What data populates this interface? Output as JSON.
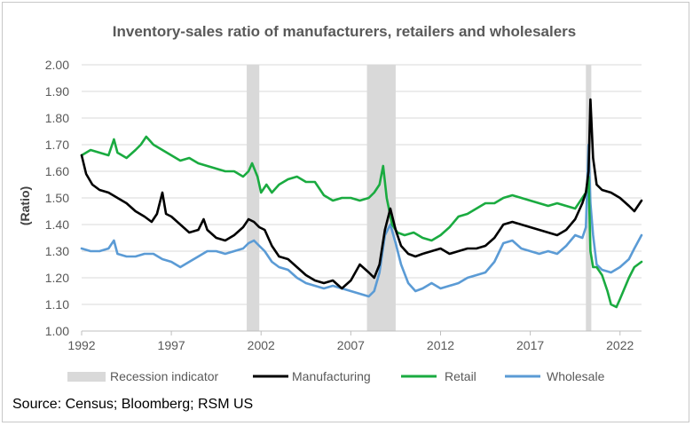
{
  "chart_data": {
    "type": "line",
    "title": "Inventory-sales ratio of manufacturers, retailers and wholesalers",
    "xlabel": "",
    "ylabel": "(Ratio)",
    "xlim": [
      1992,
      2023.2
    ],
    "ylim": [
      1.0,
      2.0
    ],
    "y_ticks": [
      1.0,
      1.1,
      1.2,
      1.3,
      1.4,
      1.5,
      1.6,
      1.7,
      1.8,
      1.9,
      2.0
    ],
    "y_tick_labels": [
      "1.00",
      "1.10",
      "1.20",
      "1.30",
      "1.40",
      "1.50",
      "1.60",
      "1.70",
      "1.80",
      "1.90",
      "2.00"
    ],
    "x_ticks": [
      1992,
      1997,
      2002,
      2007,
      2012,
      2017,
      2022
    ],
    "x_tick_labels": [
      "1992",
      "1997",
      "2002",
      "2007",
      "2012",
      "2017",
      "2022"
    ],
    "grid": "horizontal",
    "legend_position": "bottom",
    "recessions": {
      "name": "Recession indicator",
      "color": "#d9d9d9",
      "periods": [
        [
          2001.2,
          2001.9
        ],
        [
          2007.9,
          2009.5
        ],
        [
          2020.1,
          2020.4
        ]
      ]
    },
    "series": [
      {
        "name": "Manufacturing",
        "color": "#000000",
        "x": [
          1992.0,
          1992.25,
          1992.6,
          1993.0,
          1993.5,
          1994.0,
          1994.5,
          1995.0,
          1995.5,
          1995.9,
          1996.2,
          1996.5,
          1996.7,
          1997.0,
          1997.5,
          1998.0,
          1998.5,
          1998.8,
          1999.0,
          1999.5,
          2000.0,
          2000.5,
          2001.0,
          2001.3,
          2001.6,
          2001.9,
          2002.2,
          2002.6,
          2003.0,
          2003.5,
          2004.0,
          2004.5,
          2005.0,
          2005.5,
          2006.0,
          2006.5,
          2007.0,
          2007.5,
          2008.0,
          2008.3,
          2008.6,
          2008.9,
          2009.2,
          2009.5,
          2009.8,
          2010.2,
          2010.6,
          2011.0,
          2011.5,
          2012.0,
          2012.5,
          2013.0,
          2013.5,
          2014.0,
          2014.5,
          2015.0,
          2015.5,
          2016.0,
          2016.5,
          2017.0,
          2017.5,
          2018.0,
          2018.5,
          2019.0,
          2019.5,
          2019.9,
          2020.1,
          2020.25,
          2020.35,
          2020.5,
          2020.7,
          2021.0,
          2021.5,
          2022.0,
          2022.5,
          2022.8,
          2023.2
        ],
        "values": [
          1.66,
          1.59,
          1.55,
          1.53,
          1.52,
          1.5,
          1.48,
          1.45,
          1.43,
          1.41,
          1.44,
          1.52,
          1.44,
          1.43,
          1.4,
          1.37,
          1.38,
          1.42,
          1.38,
          1.35,
          1.34,
          1.36,
          1.39,
          1.42,
          1.41,
          1.39,
          1.38,
          1.32,
          1.28,
          1.27,
          1.24,
          1.21,
          1.19,
          1.18,
          1.19,
          1.16,
          1.19,
          1.25,
          1.22,
          1.2,
          1.25,
          1.38,
          1.46,
          1.38,
          1.32,
          1.29,
          1.28,
          1.29,
          1.3,
          1.31,
          1.29,
          1.3,
          1.31,
          1.31,
          1.32,
          1.35,
          1.4,
          1.41,
          1.4,
          1.39,
          1.38,
          1.37,
          1.36,
          1.38,
          1.42,
          1.48,
          1.52,
          1.6,
          1.87,
          1.65,
          1.55,
          1.53,
          1.52,
          1.5,
          1.47,
          1.45,
          1.49
        ]
      },
      {
        "name": "Retail",
        "color": "#1aab40",
        "x": [
          1992.0,
          1992.5,
          1993.0,
          1993.5,
          1993.8,
          1994.0,
          1994.5,
          1995.0,
          1995.3,
          1995.6,
          1996.0,
          1996.5,
          1997.0,
          1997.5,
          1998.0,
          1998.5,
          1999.0,
          1999.5,
          2000.0,
          2000.5,
          2001.0,
          2001.3,
          2001.5,
          2001.8,
          2002.0,
          2002.3,
          2002.6,
          2003.0,
          2003.5,
          2004.0,
          2004.5,
          2005.0,
          2005.5,
          2006.0,
          2006.5,
          2007.0,
          2007.5,
          2008.0,
          2008.3,
          2008.6,
          2008.8,
          2009.0,
          2009.3,
          2009.6,
          2010.0,
          2010.5,
          2011.0,
          2011.5,
          2012.0,
          2012.5,
          2013.0,
          2013.5,
          2014.0,
          2014.5,
          2015.0,
          2015.5,
          2016.0,
          2016.5,
          2017.0,
          2017.5,
          2018.0,
          2018.5,
          2019.0,
          2019.5,
          2019.9,
          2020.1,
          2020.25,
          2020.35,
          2020.5,
          2020.7,
          2021.0,
          2021.3,
          2021.5,
          2021.8,
          2022.0,
          2022.5,
          2022.8,
          2023.2
        ],
        "values": [
          1.66,
          1.68,
          1.67,
          1.66,
          1.72,
          1.67,
          1.65,
          1.68,
          1.7,
          1.73,
          1.7,
          1.68,
          1.66,
          1.64,
          1.65,
          1.63,
          1.62,
          1.61,
          1.6,
          1.6,
          1.58,
          1.6,
          1.63,
          1.58,
          1.52,
          1.55,
          1.52,
          1.55,
          1.57,
          1.58,
          1.56,
          1.56,
          1.51,
          1.49,
          1.5,
          1.5,
          1.49,
          1.5,
          1.52,
          1.55,
          1.62,
          1.5,
          1.4,
          1.37,
          1.36,
          1.37,
          1.35,
          1.34,
          1.36,
          1.39,
          1.43,
          1.44,
          1.46,
          1.48,
          1.48,
          1.5,
          1.51,
          1.5,
          1.49,
          1.48,
          1.47,
          1.48,
          1.47,
          1.46,
          1.5,
          1.52,
          1.58,
          1.3,
          1.24,
          1.24,
          1.21,
          1.15,
          1.1,
          1.09,
          1.12,
          1.2,
          1.24,
          1.26
        ]
      },
      {
        "name": "Wholesale",
        "color": "#5b9bd5",
        "x": [
          1992.0,
          1992.5,
          1993.0,
          1993.5,
          1993.8,
          1994.0,
          1994.5,
          1995.0,
          1995.5,
          1996.0,
          1996.5,
          1997.0,
          1997.5,
          1998.0,
          1998.5,
          1999.0,
          1999.5,
          2000.0,
          2000.5,
          2001.0,
          2001.3,
          2001.6,
          2001.9,
          2002.2,
          2002.6,
          2003.0,
          2003.5,
          2004.0,
          2004.5,
          2005.0,
          2005.5,
          2006.0,
          2006.5,
          2007.0,
          2007.5,
          2008.0,
          2008.3,
          2008.6,
          2008.9,
          2009.2,
          2009.5,
          2009.8,
          2010.2,
          2010.6,
          2011.0,
          2011.5,
          2012.0,
          2012.5,
          2013.0,
          2013.5,
          2014.0,
          2014.5,
          2015.0,
          2015.5,
          2016.0,
          2016.5,
          2017.0,
          2017.5,
          2018.0,
          2018.5,
          2019.0,
          2019.5,
          2019.9,
          2020.1,
          2020.25,
          2020.35,
          2020.5,
          2020.7,
          2021.0,
          2021.5,
          2022.0,
          2022.5,
          2022.8,
          2023.2
        ],
        "values": [
          1.31,
          1.3,
          1.3,
          1.31,
          1.34,
          1.29,
          1.28,
          1.28,
          1.29,
          1.29,
          1.27,
          1.26,
          1.24,
          1.26,
          1.28,
          1.3,
          1.3,
          1.29,
          1.3,
          1.31,
          1.33,
          1.34,
          1.32,
          1.3,
          1.26,
          1.24,
          1.23,
          1.2,
          1.18,
          1.17,
          1.16,
          1.17,
          1.16,
          1.15,
          1.14,
          1.13,
          1.15,
          1.22,
          1.36,
          1.4,
          1.33,
          1.25,
          1.18,
          1.15,
          1.16,
          1.18,
          1.16,
          1.17,
          1.18,
          1.2,
          1.21,
          1.22,
          1.26,
          1.33,
          1.34,
          1.31,
          1.3,
          1.29,
          1.3,
          1.29,
          1.32,
          1.36,
          1.35,
          1.39,
          1.7,
          1.48,
          1.36,
          1.25,
          1.23,
          1.22,
          1.24,
          1.27,
          1.31,
          1.36
        ]
      }
    ]
  },
  "source_text": "Source: Census; Bloomberg; RSM US"
}
